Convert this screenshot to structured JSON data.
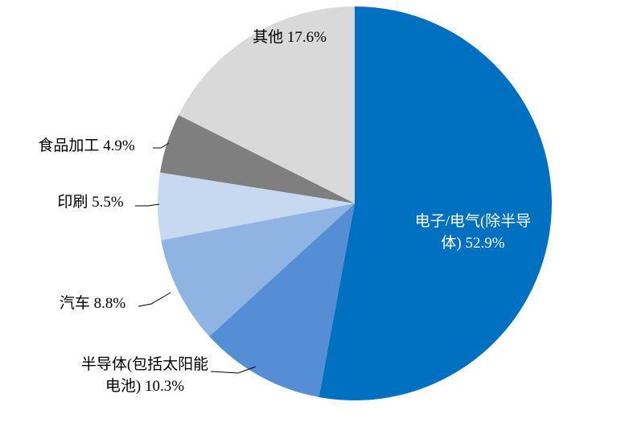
{
  "chart_data": {
    "type": "pie",
    "categories": [
      "电子/电气(除半导体)",
      "半导体(包括太阳能电池)",
      "汽车",
      "印刷",
      "食品加工",
      "其他"
    ],
    "values": [
      52.9,
      10.3,
      8.8,
      5.5,
      4.9,
      17.6
    ],
    "value_labels": [
      "52.9%",
      "10.3%",
      "8.8%",
      "5.5%",
      "4.9%",
      "17.6%"
    ],
    "colors": [
      "#0070c0",
      "#558ed5",
      "#8db4e2",
      "#c6d9f1",
      "#7f7f7f",
      "#d9d9d9"
    ]
  }
}
